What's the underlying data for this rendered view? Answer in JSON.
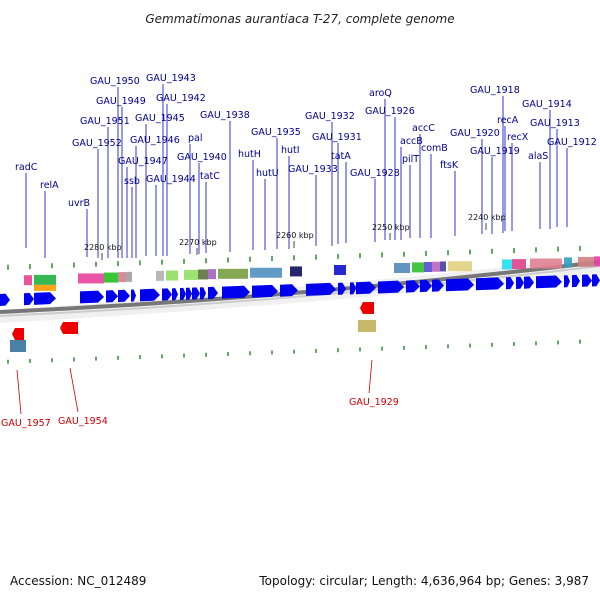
{
  "title": "Gemmatimonas aurantiaca T-27, complete genome",
  "footer": {
    "accession": "Accession: NC_012489",
    "summary": "Topology: circular; Length: 4,636,964 bp; Genes: 3,987"
  },
  "colors": {
    "forward": "#0000ee",
    "reverse": "#ee0000",
    "label_fwd": "#00008b",
    "label_rev": "#cc0000",
    "backbone": "#777777"
  },
  "kbp_labels": [
    "2280 kbp",
    "2270 kbp",
    "2260 kbp",
    "2250 kbp",
    "2240 kbp"
  ],
  "forward_labels": [
    "radC",
    "relA",
    "uvrB",
    "GAU_1952",
    "GAU_1951",
    "GAU_1950",
    "GAU_1949",
    "GAU_1947",
    "ssb",
    "GAU_1946",
    "GAU_1945",
    "GAU_1944",
    "GAU_1943",
    "GAU_1942",
    "pal",
    "GAU_1940",
    "tatC",
    "GAU_1938",
    "hutH",
    "hutU",
    "GAU_1935",
    "hutI",
    "GAU_1933",
    "GAU_1932",
    "GAU_1931",
    "tatA",
    "GAU_1928",
    "aroQ",
    "GAU_1926",
    "accB",
    "pilT",
    "accC",
    "comB",
    "ftsK",
    "GAU_1920",
    "GAU_1919",
    "GAU_1918",
    "recA",
    "recX",
    "alaS",
    "GAU_1914",
    "GAU_1913",
    "GAU_1912"
  ],
  "reverse_labels": [
    "GAU_1957",
    "GAU_1954",
    "GAU_1929"
  ]
}
